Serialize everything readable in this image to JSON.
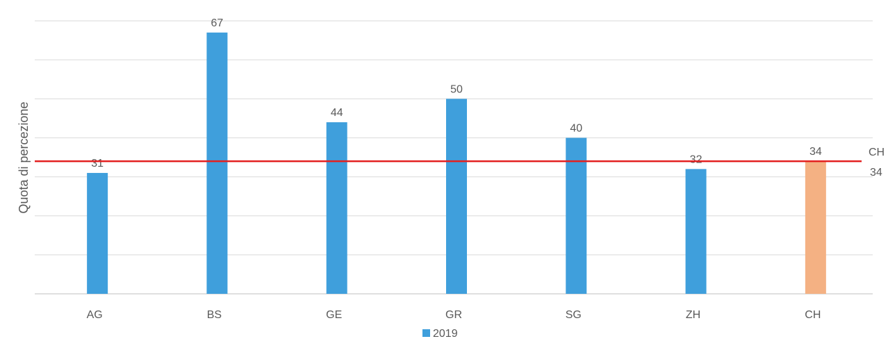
{
  "chart_data": {
    "type": "bar",
    "ylabel": "Quota di percezione",
    "categories": [
      "AG",
      "BS",
      "GE",
      "GR",
      "SG",
      "ZH",
      "CH"
    ],
    "series": [
      {
        "name": "2019",
        "values": [
          31,
          67,
          44,
          50,
          40,
          32,
          34
        ],
        "color": "#3f9fdc"
      }
    ],
    "highlight": {
      "category": "CH",
      "color": "#f4b183"
    },
    "reference_line": {
      "value": 34,
      "label_top": "CH",
      "label_bottom": "34",
      "color": "#e32020"
    },
    "ylim": [
      0,
      70
    ],
    "y_gridline_step": 10,
    "grid": true,
    "y_tick_labels_shown": false,
    "legend": {
      "position": "bottom",
      "entries": [
        "2019"
      ]
    }
  }
}
